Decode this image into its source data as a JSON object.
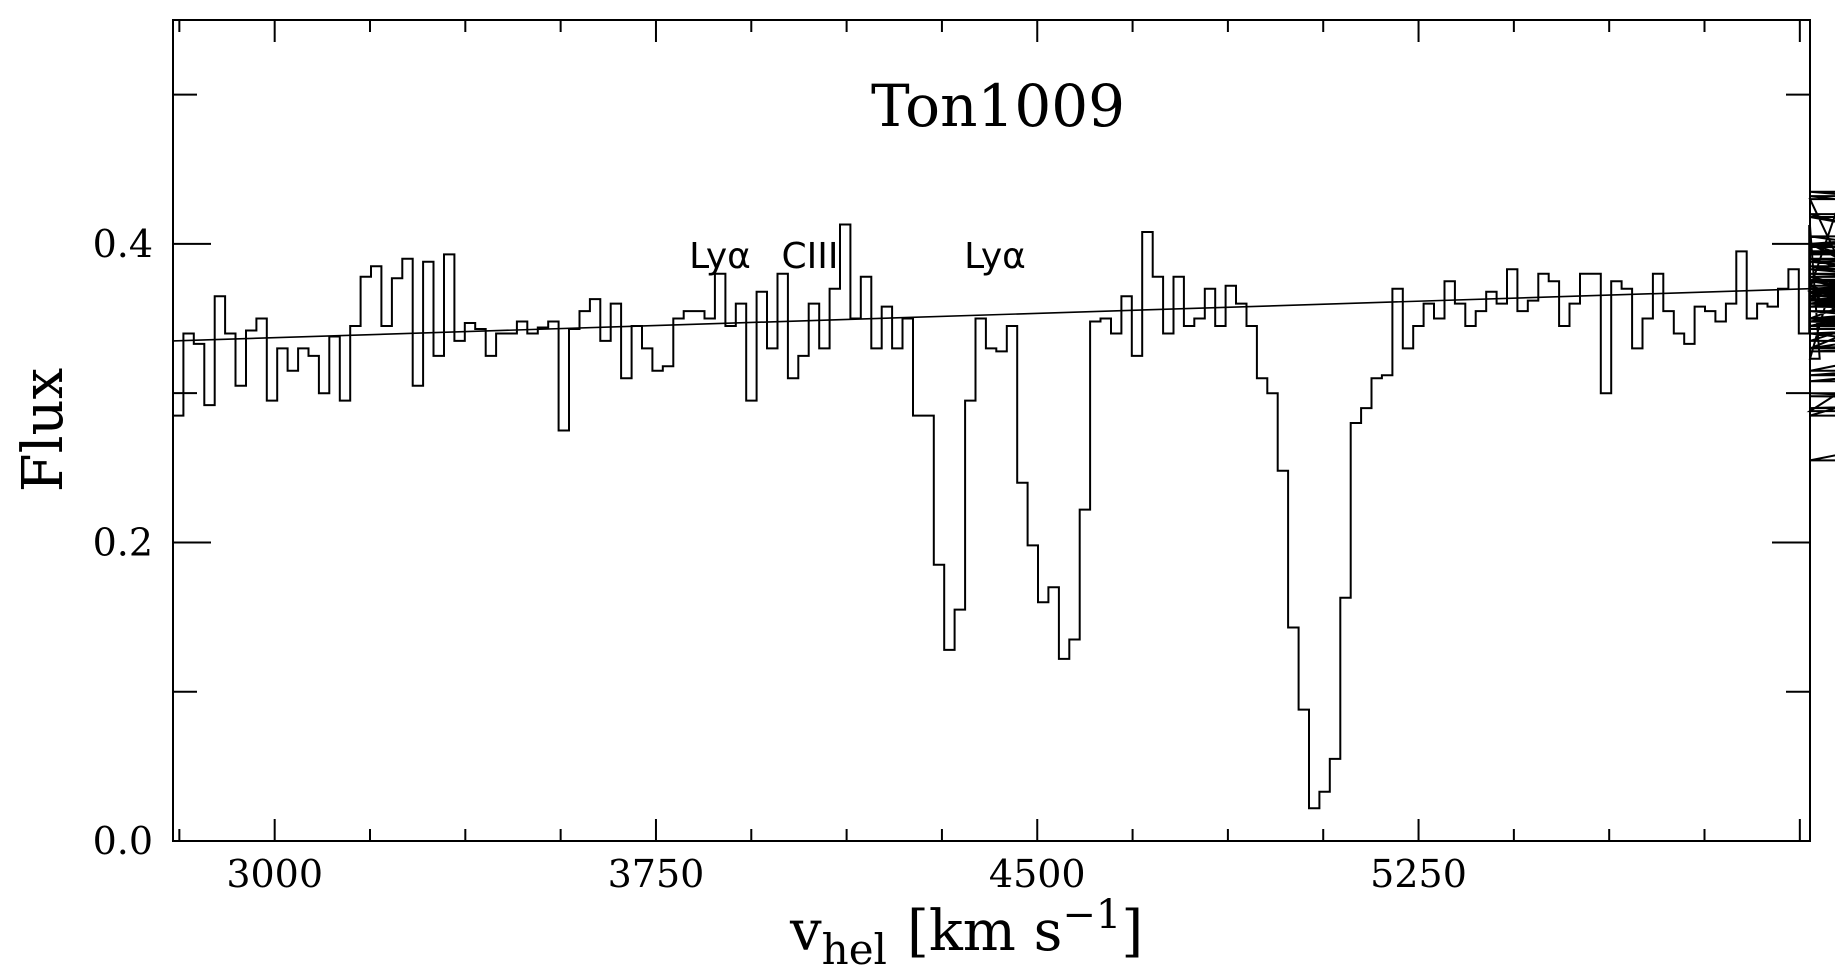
{
  "chart_data": {
    "type": "line",
    "style": "step",
    "title": "Ton1009",
    "xlabel": "v",
    "xlabel_sub": "hel",
    "xlabel_units": "[km s",
    "xlabel_units_sup": "−1",
    "xlabel_units_close": "]",
    "ylabel": "Flux",
    "xlim": [
      2800,
      6020
    ],
    "ylim": [
      0.0,
      0.55
    ],
    "x_ticks": [
      3000,
      3750,
      4500,
      5250
    ],
    "x_tick_labels": [
      "3000",
      "3750",
      "4500",
      "5250"
    ],
    "y_ticks": [
      0.0,
      0.2,
      0.4
    ],
    "y_tick_labels": [
      "0.0",
      "0.2",
      "0.4"
    ],
    "grid": false,
    "annotations": [
      {
        "text": "Lyα",
        "x": 3720,
        "y": 0.385
      },
      {
        "text": "CIII",
        "x": 3985,
        "y": 0.385
      },
      {
        "text": "Lyα",
        "x": 4355,
        "y": 0.385
      }
    ],
    "series": [
      {
        "values_x_start": 2800,
        "values_x_step": 20.5,
        "values": [
          0.285,
          0.34,
          0.333,
          0.292,
          0.365,
          0.34,
          0.305,
          0.342,
          0.35,
          0.295,
          0.33,
          0.315,
          0.33,
          0.325,
          0.3,
          0.338,
          0.295,
          0.345,
          0.378,
          0.385,
          0.345,
          0.377,
          0.39,
          0.305,
          0.388,
          0.325,
          0.393,
          0.335,
          0.347,
          0.343,
          0.325,
          0.34,
          0.34,
          0.348,
          0.34,
          0.344,
          0.348,
          0.275,
          0.343,
          0.355,
          0.363,
          0.335,
          0.36,
          0.31,
          0.345,
          0.33,
          0.315,
          0.318,
          0.35,
          0.355,
          0.355,
          0.35,
          0.38,
          0.345,
          0.36,
          0.295,
          0.368,
          0.33,
          0.38,
          0.31,
          0.325,
          0.36,
          0.33,
          0.37,
          0.413,
          0.35,
          0.378,
          0.33,
          0.358,
          0.33,
          0.35,
          0.285,
          0.285,
          0.185,
          0.128,
          0.155,
          0.295,
          0.35,
          0.33,
          0.328,
          0.345,
          0.24,
          0.198,
          0.16,
          0.17,
          0.122,
          0.135,
          0.222,
          0.348,
          0.35,
          0.34,
          0.365,
          0.325,
          0.408,
          0.378,
          0.34,
          0.378,
          0.345,
          0.35,
          0.37,
          0.345,
          0.372,
          0.36,
          0.345,
          0.31,
          0.3,
          0.248,
          0.143,
          0.088,
          0.022,
          0.033,
          0.055,
          0.163,
          0.28,
          0.29,
          0.31,
          0.312,
          0.37,
          0.33,
          0.345,
          0.36,
          0.35,
          0.375,
          0.36,
          0.345,
          0.355,
          0.368,
          0.36,
          0.383,
          0.355,
          0.362,
          0.38,
          0.375,
          0.345,
          0.36,
          0.38,
          0.38,
          0.3,
          0.375,
          0.37,
          0.33,
          0.35,
          0.38,
          0.355,
          0.34,
          0.333,
          0.358,
          0.355,
          0.348,
          0.36,
          0.395,
          0.35,
          0.36,
          0.358,
          0.37,
          0.383,
          0.34,
          0.412,
          0.323,
          0.37,
          0.43,
          0.372,
          0.36,
          0.365,
          0.376,
          0.36,
          0.365,
          0.367,
          0.363,
          0.4,
          0.37,
          0.335,
          0.368,
          0.288,
          0.363,
          0.35,
          0.4,
          0.33,
          0.39,
          0.345,
          0.36,
          0.385,
          0.365,
          0.368,
          0.375,
          0.345,
          0.345,
          0.393,
          0.42,
          0.36,
          0.37,
          0.383,
          0.362,
          0.362,
          0.398,
          0.395,
          0.405,
          0.368,
          0.368,
          0.388,
          0.36,
          0.348,
          0.4,
          0.368,
          0.35,
          0.312,
          0.34,
          0.3,
          0.285,
          0.39,
          0.375,
          0.33,
          0.345,
          0.343,
          0.348,
          0.33,
          0.35,
          0.385,
          0.34,
          0.36,
          0.33,
          0.4,
          0.435,
          0.395,
          0.345,
          0.348,
          0.378,
          0.375,
          0.378,
          0.255,
          0.358,
          0.35,
          0.37,
          0.375,
          0.38,
          0.368,
          0.365,
          0.38,
          0.358,
          0.418,
          0.315,
          0.432,
          0.36,
          0.345,
          0.35,
          0.328,
          0.345,
          0.35,
          0.345,
          0.355,
          0.3,
          0.298,
          0.29,
          0.308,
          0.37,
          0.33,
          0.365,
          0.37
        ]
      },
      {
        "name": "",
        "x": [
          2800,
          6020
        ],
        "y": [
          0.335,
          0.37
        ]
      }
    ]
  }
}
